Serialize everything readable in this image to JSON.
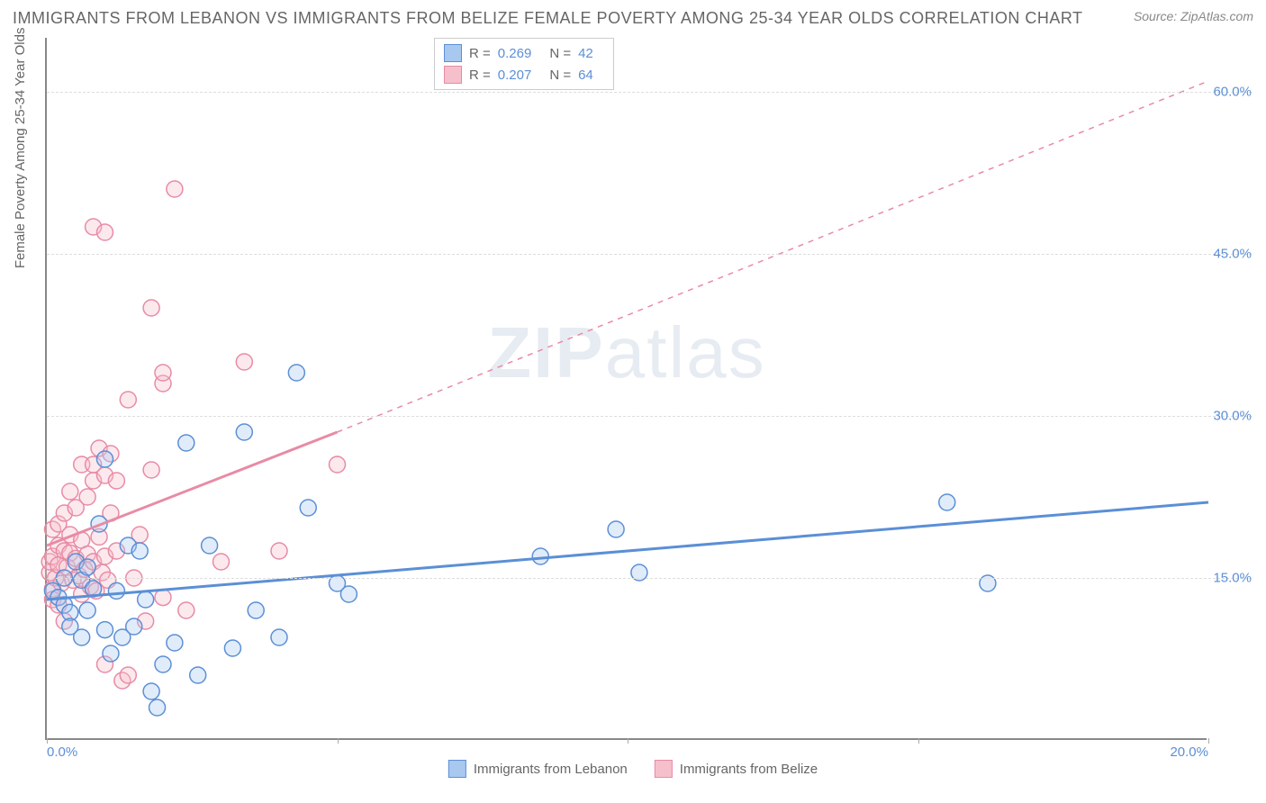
{
  "title": "IMMIGRANTS FROM LEBANON VS IMMIGRANTS FROM BELIZE FEMALE POVERTY AMONG 25-34 YEAR OLDS CORRELATION CHART",
  "source": "Source: ZipAtlas.com",
  "y_axis_title": "Female Poverty Among 25-34 Year Olds",
  "watermark_a": "ZIP",
  "watermark_b": "atlas",
  "chart": {
    "type": "scatter",
    "xlim": [
      0,
      20
    ],
    "ylim": [
      0,
      65
    ],
    "x_ticks": [
      0,
      5,
      10,
      15,
      20
    ],
    "x_tick_labels": [
      "0.0%",
      "",
      "",
      "",
      "20.0%"
    ],
    "y_ticks": [
      15,
      30,
      45,
      60
    ],
    "y_tick_labels": [
      "15.0%",
      "30.0%",
      "45.0%",
      "60.0%"
    ],
    "background_color": "#ffffff",
    "grid_color": "#dddddd",
    "axis_color": "#888888",
    "tick_label_color": "#5b8fd6",
    "marker_radius": 9,
    "series": [
      {
        "name": "Immigrants from Lebanon",
        "color_fill": "#a8c8f0",
        "color_stroke": "#5b8fd6",
        "R": "0.269",
        "N": "42",
        "trend_solid": {
          "x1": 0,
          "y1": 13,
          "x2": 20,
          "y2": 22
        },
        "points": [
          [
            0.1,
            13.8
          ],
          [
            0.2,
            13.2
          ],
          [
            0.3,
            12.5
          ],
          [
            0.3,
            15.0
          ],
          [
            0.4,
            11.8
          ],
          [
            0.4,
            10.5
          ],
          [
            0.5,
            16.5
          ],
          [
            0.6,
            14.8
          ],
          [
            0.6,
            9.5
          ],
          [
            0.7,
            12.0
          ],
          [
            0.7,
            16.0
          ],
          [
            0.8,
            14.0
          ],
          [
            0.9,
            20.0
          ],
          [
            1.0,
            10.2
          ],
          [
            1.0,
            26.0
          ],
          [
            1.1,
            8.0
          ],
          [
            1.2,
            13.8
          ],
          [
            1.3,
            9.5
          ],
          [
            1.4,
            18.0
          ],
          [
            1.5,
            10.5
          ],
          [
            1.6,
            17.5
          ],
          [
            1.7,
            13.0
          ],
          [
            1.8,
            4.5
          ],
          [
            1.9,
            3.0
          ],
          [
            2.0,
            7.0
          ],
          [
            2.2,
            9.0
          ],
          [
            2.4,
            27.5
          ],
          [
            2.6,
            6.0
          ],
          [
            2.8,
            18.0
          ],
          [
            3.2,
            8.5
          ],
          [
            3.4,
            28.5
          ],
          [
            3.6,
            12.0
          ],
          [
            4.0,
            9.5
          ],
          [
            4.3,
            34.0
          ],
          [
            4.5,
            21.5
          ],
          [
            5.2,
            13.5
          ],
          [
            5.0,
            14.5
          ],
          [
            8.5,
            17.0
          ],
          [
            9.8,
            19.5
          ],
          [
            10.2,
            15.5
          ],
          [
            15.5,
            22.0
          ],
          [
            16.2,
            14.5
          ]
        ]
      },
      {
        "name": "Immigrants from Belize",
        "color_fill": "#f5c0cc",
        "color_stroke": "#e88ba5",
        "R": "0.207",
        "N": "64",
        "trend_solid": {
          "x1": 0,
          "y1": 18,
          "x2": 5,
          "y2": 28.5
        },
        "trend_dash": {
          "x1": 5,
          "y1": 28.5,
          "x2": 20,
          "y2": 61
        },
        "points": [
          [
            0.05,
            15.5
          ],
          [
            0.05,
            16.5
          ],
          [
            0.1,
            14.0
          ],
          [
            0.1,
            17.0
          ],
          [
            0.1,
            19.5
          ],
          [
            0.1,
            13.0
          ],
          [
            0.15,
            15.0
          ],
          [
            0.2,
            16.2
          ],
          [
            0.2,
            18.0
          ],
          [
            0.2,
            20.0
          ],
          [
            0.2,
            12.5
          ],
          [
            0.25,
            14.5
          ],
          [
            0.3,
            17.5
          ],
          [
            0.3,
            21.0
          ],
          [
            0.3,
            11.0
          ],
          [
            0.35,
            16.0
          ],
          [
            0.4,
            19.0
          ],
          [
            0.4,
            23.0
          ],
          [
            0.4,
            17.3
          ],
          [
            0.45,
            14.8
          ],
          [
            0.5,
            16.8
          ],
          [
            0.5,
            21.5
          ],
          [
            0.55,
            15.2
          ],
          [
            0.6,
            18.5
          ],
          [
            0.6,
            25.5
          ],
          [
            0.6,
            13.5
          ],
          [
            0.65,
            15.8
          ],
          [
            0.7,
            17.2
          ],
          [
            0.7,
            22.5
          ],
          [
            0.75,
            14.2
          ],
          [
            0.8,
            16.5
          ],
          [
            0.8,
            24.0
          ],
          [
            0.8,
            25.5
          ],
          [
            0.85,
            13.8
          ],
          [
            0.9,
            18.8
          ],
          [
            0.9,
            27.0
          ],
          [
            0.95,
            15.5
          ],
          [
            0.8,
            47.5
          ],
          [
            1.0,
            47.0
          ],
          [
            1.0,
            24.5
          ],
          [
            1.0,
            17.0
          ],
          [
            1.05,
            14.8
          ],
          [
            1.1,
            21.0
          ],
          [
            1.1,
            26.5
          ],
          [
            1.2,
            17.5
          ],
          [
            1.2,
            24.0
          ],
          [
            1.3,
            5.5
          ],
          [
            1.0,
            7.0
          ],
          [
            1.4,
            6.0
          ],
          [
            1.5,
            15.0
          ],
          [
            1.6,
            19.0
          ],
          [
            1.7,
            11.0
          ],
          [
            1.8,
            25.0
          ],
          [
            1.8,
            40.0
          ],
          [
            2.0,
            13.2
          ],
          [
            2.0,
            33.0
          ],
          [
            2.0,
            34.0
          ],
          [
            2.4,
            12.0
          ],
          [
            2.2,
            51.0
          ],
          [
            3.0,
            16.5
          ],
          [
            3.4,
            35.0
          ],
          [
            4.0,
            17.5
          ],
          [
            5.0,
            25.5
          ],
          [
            1.4,
            31.5
          ]
        ]
      }
    ]
  },
  "stats_box": {
    "R_label": "R =",
    "N_label": "N ="
  },
  "bottom_legend": [
    {
      "label": "Immigrants from Lebanon",
      "fill": "#a8c8f0",
      "stroke": "#5b8fd6"
    },
    {
      "label": "Immigrants from Belize",
      "fill": "#f5c0cc",
      "stroke": "#e88ba5"
    }
  ]
}
